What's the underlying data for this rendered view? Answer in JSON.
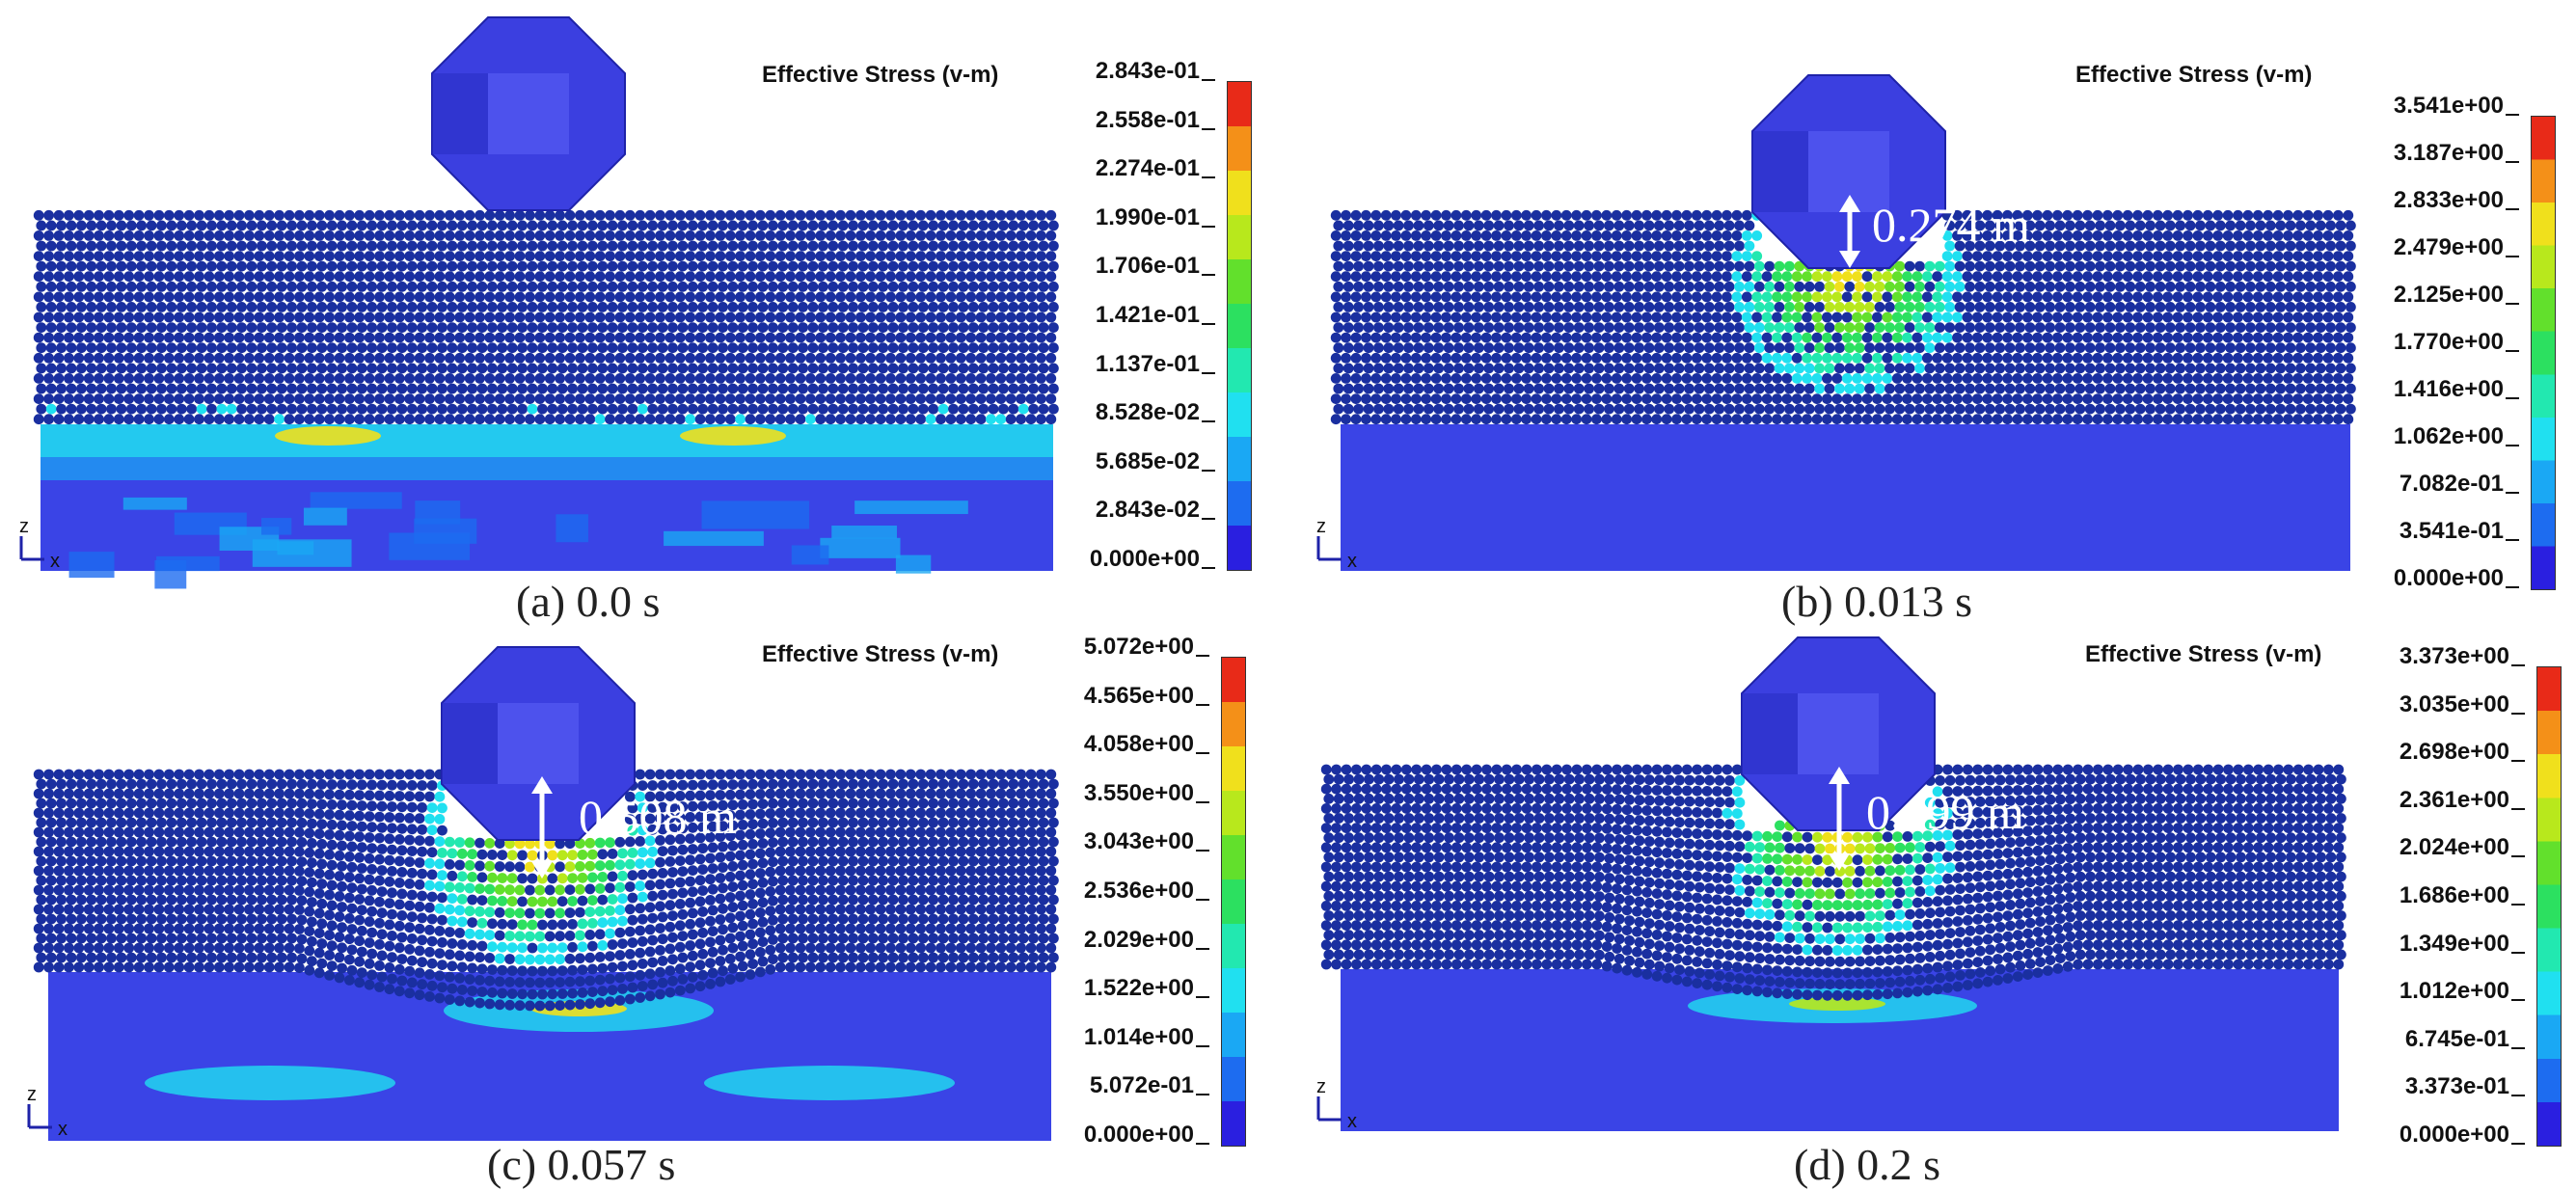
{
  "panels": [
    {
      "id": "a",
      "caption": "(a) 0.0 s",
      "legend_title": "Effective Stress (v-m)",
      "legend_values": [
        "2.843e-01",
        "2.558e-01",
        "2.274e-01",
        "1.990e-01",
        "1.706e-01",
        "1.421e-01",
        "1.137e-01",
        "8.528e-02",
        "5.685e-02",
        "2.843e-02",
        "0.000e+00"
      ],
      "displacement": "",
      "state": "initial"
    },
    {
      "id": "b",
      "caption": "(b) 0.013 s",
      "legend_title": "Effective Stress (v-m)",
      "legend_values": [
        "3.541e+00",
        "3.187e+00",
        "2.833e+00",
        "2.479e+00",
        "2.125e+00",
        "1.770e+00",
        "1.416e+00",
        "1.062e+00",
        "7.082e-01",
        "3.541e-01",
        "0.000e+00"
      ],
      "displacement": "0.274 m",
      "state": "impact"
    },
    {
      "id": "c",
      "caption": "(c) 0.057 s",
      "legend_title": "Effective Stress (v-m)",
      "legend_values": [
        "5.072e+00",
        "4.565e+00",
        "4.058e+00",
        "3.550e+00",
        "3.043e+00",
        "2.536e+00",
        "2.029e+00",
        "1.522e+00",
        "1.014e+00",
        "5.072e-01",
        "0.000e+00"
      ],
      "displacement": "0.508 m",
      "state": "penetration"
    },
    {
      "id": "d",
      "caption": "(d) 0.2 s",
      "legend_title": "Effective Stress (v-m)",
      "legend_values": [
        "3.373e+00",
        "3.035e+00",
        "2.698e+00",
        "2.361e+00",
        "2.024e+00",
        "1.686e+00",
        "1.349e+00",
        "1.012e+00",
        "6.745e-01",
        "3.373e-01",
        "0.000e+00"
      ],
      "displacement": "0.499 m",
      "state": "rebound"
    }
  ],
  "axis_labels": {
    "z": "z",
    "x": "x"
  },
  "colormap": [
    "#2a1fe0",
    "#1d6cf0",
    "#1aa8f4",
    "#20e0f0",
    "#22e8b0",
    "#2ce060",
    "#62e02c",
    "#b8e81c",
    "#f0e01c",
    "#f49018",
    "#e82a18"
  ],
  "colors": {
    "particle": "#1a2fa0",
    "particle_highlight": "#3a52d0",
    "base": "#3a44e6",
    "block": "#3b3fe0",
    "block_light": "#5258f0",
    "block_dark": "#2a2ec4"
  }
}
